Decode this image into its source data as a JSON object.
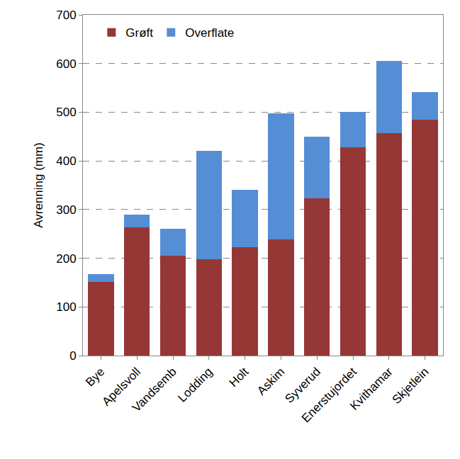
{
  "chart_data": {
    "type": "bar",
    "stacked": true,
    "y_label": "Avrenning (mm)",
    "categories": [
      "Bye",
      "Apelsvoll",
      "Vandsemb",
      "Lodding",
      "Holt",
      "Askim",
      "Syverud",
      "Enerstujordet",
      "Kvithamar",
      "Skjetlein"
    ],
    "series": [
      {
        "name": "Grøft",
        "color": "#953735",
        "values": [
          152,
          264,
          205,
          198,
          223,
          239,
          323,
          428,
          457,
          485
        ]
      },
      {
        "name": "Overflate",
        "color": "#558ed5",
        "values": [
          15,
          26,
          55,
          222,
          118,
          258,
          127,
          73,
          149,
          57
        ]
      }
    ],
    "ylim": [
      0,
      700
    ],
    "yticks": [
      0,
      100,
      200,
      300,
      400,
      500,
      600,
      700
    ],
    "grid": true,
    "legend": "top-left"
  }
}
